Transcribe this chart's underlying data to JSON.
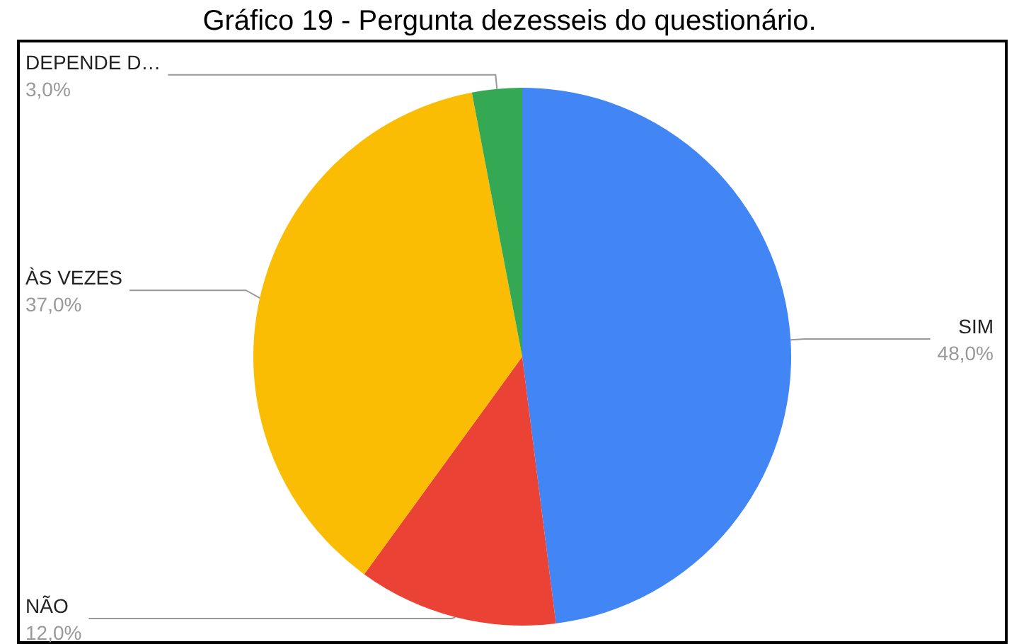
{
  "chart_data": {
    "type": "pie",
    "title": "Gráfico 19 - Pergunta dezesseis do questionário.",
    "categories": [
      "SIM",
      "NÃO",
      "ÀS VEZES",
      "DEPENDE D…"
    ],
    "values": [
      48,
      12,
      37,
      3
    ],
    "value_labels": [
      "48,0%",
      "12,0%",
      "37,0%",
      "3,0%"
    ],
    "colors": [
      "#4285f4",
      "#ea4335",
      "#fbbc04",
      "#34a853"
    ],
    "legend": false
  }
}
